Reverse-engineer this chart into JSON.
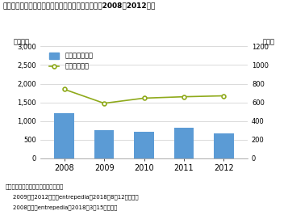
{
  "title": "（図表３）ベンチャー企業による資金調達の推移［2008～2012年］",
  "left_ylabel": "（億円）",
  "right_ylabel": "（社）",
  "years": [
    2008,
    2009,
    2010,
    2011,
    2012
  ],
  "bar_values": [
    1200,
    750,
    700,
    820,
    660
  ],
  "line_values": [
    740,
    590,
    645,
    660,
    670
  ],
  "bar_color": "#5b9bd5",
  "line_color": "#8faa1b",
  "left_ylim": [
    0,
    3000
  ],
  "right_ylim": [
    0,
    1200
  ],
  "left_yticks": [
    0,
    500,
    1000,
    1500,
    2000,
    2500,
    3000
  ],
  "right_yticks": [
    0,
    200,
    400,
    600,
    800,
    1000,
    1200
  ],
  "legend_bar": "調達額（左軸）",
  "legend_line": "社数（右軸）",
  "footnote1": "（資料）ジャパンベンチャーリサーチ",
  "footnote2": "    2009年～2012年は，entrepedia（2018年8月12日現在）",
  "footnote3": "    2008年は，entrepedia（2018年3月15日現在）",
  "bg_color": "#ffffff",
  "grid_color": "#cccccc"
}
